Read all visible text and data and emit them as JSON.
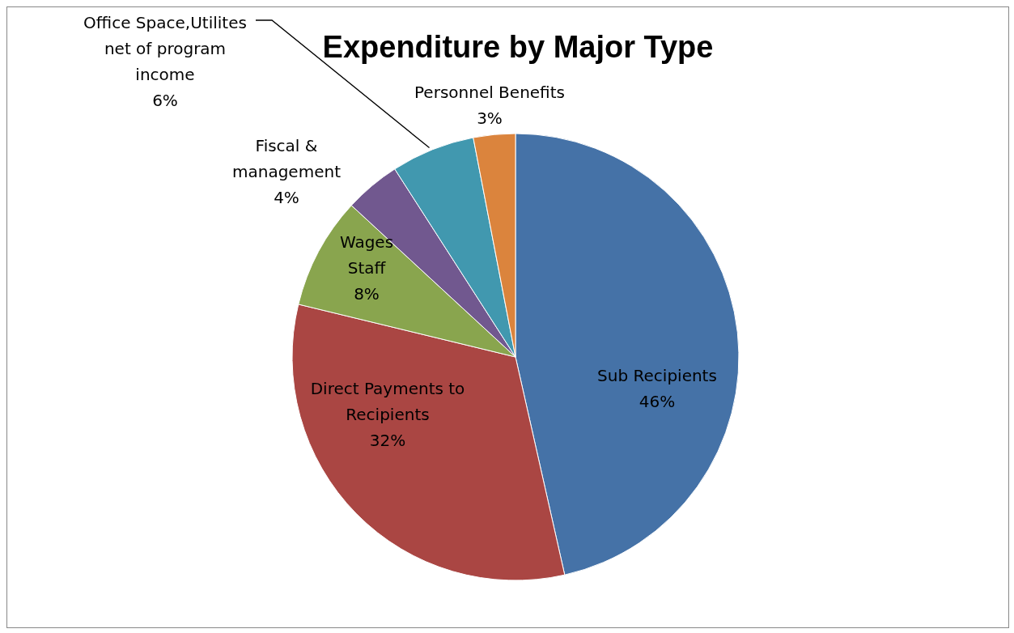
{
  "chart_data": {
    "type": "pie",
    "title": "Expenditure by Major Type",
    "categories": [
      "Sub Recipients",
      "Direct Payments to Recipients",
      "Wages Staff",
      "Fiscal & management",
      "Office Space,Utilites net of program income",
      "Personnel Benefits"
    ],
    "values": [
      46,
      32,
      8,
      4,
      6,
      3
    ],
    "value_labels": [
      "46%",
      "32%",
      "8%",
      "4%",
      "6%",
      "3%"
    ],
    "colors": [
      "#4572a7",
      "#aa4643",
      "#89a54e",
      "#71588f",
      "#4198af",
      "#db843d"
    ],
    "legend": false
  }
}
